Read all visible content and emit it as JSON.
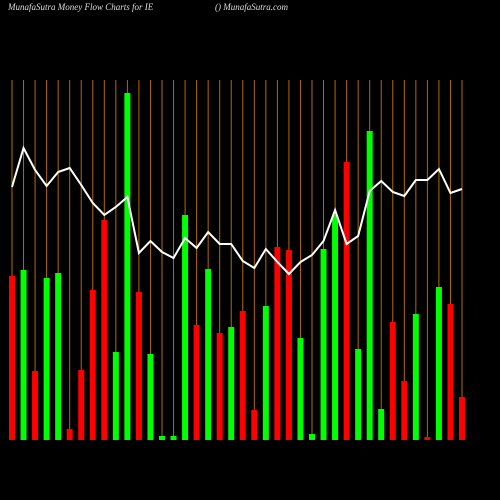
{
  "chart_data": {
    "type": "bar",
    "title": "MunafaSutra  Money Flow  Charts for IE",
    "subtitle": "() MunafaSutra.com",
    "values": [
      164,
      170,
      69,
      162,
      167,
      11,
      70,
      150,
      220,
      88,
      347,
      148,
      86,
      4,
      4,
      225,
      115,
      171,
      107,
      113,
      129,
      30,
      134,
      193,
      190,
      102,
      6,
      191,
      225,
      278,
      91,
      309,
      31,
      118,
      59,
      126,
      3,
      153,
      136,
      43
    ],
    "colors": [
      "#ff0000",
      "#00ff00",
      "#ff0000",
      "#00ff00",
      "#00ff00",
      "#ff0000",
      "#ff0000",
      "#ff0000",
      "#ff0000",
      "#00ff00",
      "#00ff00",
      "#ff0000",
      "#00ff00",
      "#00ff00",
      "#00ff00",
      "#00ff00",
      "#ff0000",
      "#00ff00",
      "#ff0000",
      "#00ff00",
      "#ff0000",
      "#ff0000",
      "#00ff00",
      "#ff0000",
      "#ff0000",
      "#00ff00",
      "#00ff00",
      "#00ff00",
      "#00ff00",
      "#ff0000",
      "#00ff00",
      "#00ff00",
      "#00ff00",
      "#ff0000",
      "#ff0000",
      "#00ff00",
      "#ff0000",
      "#00ff00",
      "#ff0000",
      "#ff0000"
    ],
    "line": {
      "color": "#ffffff",
      "values": [
        253,
        292,
        270,
        254,
        268,
        272,
        255,
        237,
        225,
        233,
        243,
        187,
        199,
        188,
        182,
        202,
        192,
        208,
        196,
        196,
        179,
        172,
        191,
        178,
        166,
        178,
        185,
        199,
        230,
        196,
        204,
        249,
        259,
        248,
        244,
        260,
        260,
        271,
        247,
        251
      ]
    },
    "ylim": [
      0,
      360
    ],
    "grid_color": "#b36b00"
  }
}
